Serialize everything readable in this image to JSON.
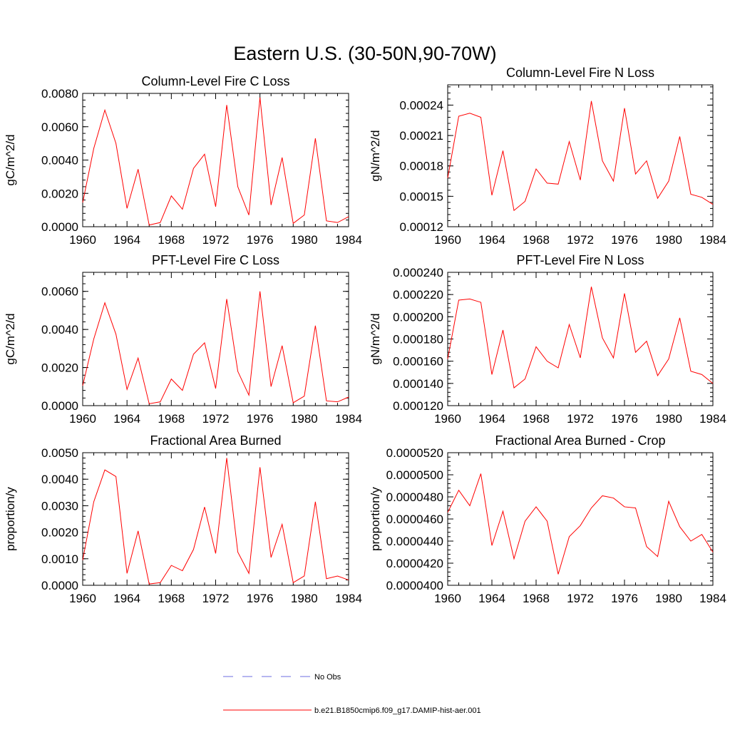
{
  "figure": {
    "title": "Eastern U.S. (30-50N,90-70W)"
  },
  "legend": {
    "entries": [
      {
        "label": "No Obs",
        "color": "#6d6de0",
        "style": "dashed"
      },
      {
        "label": "b.e21.B1850cmip6.f09_g17.DAMIP-hist-aer.001",
        "color": "#ff0000",
        "style": "solid"
      }
    ]
  },
  "chart_data": [
    {
      "type": "line",
      "title": "Column-Level Fire C Loss",
      "xlabel": "",
      "ylabel": "gC/m^2/d",
      "xlim": [
        1960,
        1984
      ],
      "ylim": [
        0,
        0.008
      ],
      "xticks": [
        1960,
        1964,
        1968,
        1972,
        1976,
        1980,
        1984
      ],
      "xtick_labels": [
        "1960",
        "1964",
        "1968",
        "1972",
        "1976",
        "1980",
        "1984"
      ],
      "yticks": [
        0,
        0.002,
        0.004,
        0.006,
        0.008
      ],
      "ytick_labels": [
        "0.0000",
        "0.0020",
        "0.0040",
        "0.0060",
        "0.0080"
      ],
      "x": [
        1960,
        1961,
        1962,
        1963,
        1964,
        1965,
        1966,
        1967,
        1968,
        1969,
        1970,
        1971,
        1972,
        1973,
        1974,
        1975,
        1976,
        1977,
        1978,
        1979,
        1980,
        1981,
        1982,
        1983,
        1984
      ],
      "series": [
        {
          "color": "#ff0000",
          "values": [
            0.00145,
            0.0047,
            0.007,
            0.005,
            0.0011,
            0.00345,
            0.0001,
            0.00025,
            0.00185,
            0.00105,
            0.0035,
            0.00435,
            0.0012,
            0.0073,
            0.0024,
            0.0007,
            0.00775,
            0.0013,
            0.00415,
            0.0002,
            0.0007,
            0.0053,
            0.00035,
            0.00025,
            0.0006
          ]
        }
      ]
    },
    {
      "type": "line",
      "title": "Column-Level Fire N Loss",
      "xlabel": "",
      "ylabel": "gN/m^2/d",
      "xlim": [
        1960,
        1984
      ],
      "ylim": [
        0.00012,
        0.00026
      ],
      "xticks": [
        1960,
        1964,
        1968,
        1972,
        1976,
        1980,
        1984
      ],
      "xtick_labels": [
        "1960",
        "1964",
        "1968",
        "1972",
        "1976",
        "1980",
        "1984"
      ],
      "yticks": [
        0.00012,
        0.00015,
        0.00018,
        0.00021,
        0.00024
      ],
      "ytick_labels": [
        "0.00012",
        "0.00015",
        "0.00018",
        "0.00021",
        "0.00024"
      ],
      "x": [
        1960,
        1961,
        1962,
        1963,
        1964,
        1965,
        1966,
        1967,
        1968,
        1969,
        1970,
        1971,
        1972,
        1973,
        1974,
        1975,
        1976,
        1977,
        1978,
        1979,
        1980,
        1981,
        1982,
        1983,
        1984
      ],
      "series": [
        {
          "color": "#ff0000",
          "values": [
            0.000168,
            0.000229,
            0.000232,
            0.000228,
            0.000151,
            0.000195,
            0.000136,
            0.000145,
            0.000177,
            0.000163,
            0.000162,
            0.000204,
            0.000166,
            0.000244,
            0.000185,
            0.000165,
            0.000237,
            0.000172,
            0.000185,
            0.000148,
            0.000165,
            0.000209,
            0.000152,
            0.000149,
            0.000142
          ]
        }
      ]
    },
    {
      "type": "line",
      "title": "PFT-Level Fire C Loss",
      "xlabel": "",
      "ylabel": "gC/m^2/d",
      "xlim": [
        1960,
        1984
      ],
      "ylim": [
        0,
        0.007
      ],
      "xticks": [
        1960,
        1964,
        1968,
        1972,
        1976,
        1980,
        1984
      ],
      "xtick_labels": [
        "1960",
        "1964",
        "1968",
        "1972",
        "1976",
        "1980",
        "1984"
      ],
      "yticks": [
        0,
        0.002,
        0.004,
        0.006
      ],
      "ytick_labels": [
        "0.0000",
        "0.0020",
        "0.0040",
        "0.0060"
      ],
      "x": [
        1960,
        1961,
        1962,
        1963,
        1964,
        1965,
        1966,
        1967,
        1968,
        1969,
        1970,
        1971,
        1972,
        1973,
        1974,
        1975,
        1976,
        1977,
        1978,
        1979,
        1980,
        1981,
        1982,
        1983,
        1984
      ],
      "series": [
        {
          "color": "#ff0000",
          "values": [
            0.00105,
            0.0035,
            0.0054,
            0.00375,
            0.00085,
            0.0025,
            0.0001,
            0.0002,
            0.0014,
            0.0008,
            0.0027,
            0.0033,
            0.0009,
            0.0056,
            0.0018,
            0.00055,
            0.006,
            0.001,
            0.00315,
            0.00015,
            0.0005,
            0.0042,
            0.00025,
            0.0002,
            0.00045
          ]
        }
      ]
    },
    {
      "type": "line",
      "title": "PFT-Level Fire N Loss",
      "xlabel": "",
      "ylabel": "gN/m^2/d",
      "xlim": [
        1960,
        1984
      ],
      "ylim": [
        0.00012,
        0.00024
      ],
      "xticks": [
        1960,
        1964,
        1968,
        1972,
        1976,
        1980,
        1984
      ],
      "xtick_labels": [
        "1960",
        "1964",
        "1968",
        "1972",
        "1976",
        "1980",
        "1984"
      ],
      "yticks": [
        0.00012,
        0.00014,
        0.00016,
        0.00018,
        0.0002,
        0.00022,
        0.00024
      ],
      "ytick_labels": [
        "0.000120",
        "0.000140",
        "0.000160",
        "0.000180",
        "0.000200",
        "0.000220",
        "0.000240"
      ],
      "x": [
        1960,
        1961,
        1962,
        1963,
        1964,
        1965,
        1966,
        1967,
        1968,
        1969,
        1970,
        1971,
        1972,
        1973,
        1974,
        1975,
        1976,
        1977,
        1978,
        1979,
        1980,
        1981,
        1982,
        1983,
        1984
      ],
      "series": [
        {
          "color": "#ff0000",
          "values": [
            0.000162,
            0.000215,
            0.000216,
            0.000213,
            0.000148,
            0.000188,
            0.000136,
            0.000144,
            0.000173,
            0.00016,
            0.000154,
            0.000193,
            0.000163,
            0.000227,
            0.000181,
            0.000163,
            0.000221,
            0.000168,
            0.000178,
            0.000147,
            0.000162,
            0.000199,
            0.000151,
            0.000148,
            0.00014
          ]
        }
      ]
    },
    {
      "type": "line",
      "title": "Fractional Area Burned",
      "xlabel": "",
      "ylabel": "proportion/y",
      "xlim": [
        1960,
        1984
      ],
      "ylim": [
        0,
        0.005
      ],
      "xticks": [
        1960,
        1964,
        1968,
        1972,
        1976,
        1980,
        1984
      ],
      "xtick_labels": [
        "1960",
        "1964",
        "1968",
        "1972",
        "1976",
        "1980",
        "1984"
      ],
      "yticks": [
        0,
        0.001,
        0.002,
        0.003,
        0.004,
        0.005
      ],
      "ytick_labels": [
        "0.0000",
        "0.0010",
        "0.0020",
        "0.0030",
        "0.0040",
        "0.0050"
      ],
      "x": [
        1960,
        1961,
        1962,
        1963,
        1964,
        1965,
        1966,
        1967,
        1968,
        1969,
        1970,
        1971,
        1972,
        1973,
        1974,
        1975,
        1976,
        1977,
        1978,
        1979,
        1980,
        1981,
        1982,
        1983,
        1984
      ],
      "series": [
        {
          "color": "#ff0000",
          "values": [
            0.00095,
            0.00315,
            0.00435,
            0.0041,
            0.00045,
            0.00205,
            5e-05,
            0.0001,
            0.00075,
            0.00055,
            0.00135,
            0.00295,
            0.0012,
            0.0048,
            0.00125,
            0.00045,
            0.00445,
            0.00105,
            0.0023,
            0.0001,
            0.00035,
            0.00315,
            0.00025,
            0.00035,
            0.0002
          ]
        }
      ]
    },
    {
      "type": "line",
      "title": "Fractional Area Burned - Crop",
      "xlabel": "",
      "ylabel": "proportion/y",
      "xlim": [
        1960,
        1984
      ],
      "ylim": [
        4e-05,
        5.2e-05
      ],
      "xticks": [
        1960,
        1964,
        1968,
        1972,
        1976,
        1980,
        1984
      ],
      "xtick_labels": [
        "1960",
        "1964",
        "1968",
        "1972",
        "1976",
        "1980",
        "1984"
      ],
      "yticks": [
        4e-05,
        4.2e-05,
        4.4e-05,
        4.6e-05,
        4.8e-05,
        5e-05,
        5.2e-05
      ],
      "ytick_labels": [
        "0.0000400",
        "0.0000420",
        "0.0000440",
        "0.0000460",
        "0.0000480",
        "0.0000500",
        "0.0000520"
      ],
      "x": [
        1960,
        1961,
        1962,
        1963,
        1964,
        1965,
        1966,
        1967,
        1968,
        1969,
        1970,
        1971,
        1972,
        1973,
        1974,
        1975,
        1976,
        1977,
        1978,
        1979,
        1980,
        1981,
        1982,
        1983,
        1984
      ],
      "series": [
        {
          "color": "#ff0000",
          "values": [
            4.66e-05,
            4.86e-05,
            4.72e-05,
            5.01e-05,
            4.36e-05,
            4.67e-05,
            4.24e-05,
            4.58e-05,
            4.71e-05,
            4.58e-05,
            4.1e-05,
            4.44e-05,
            4.54e-05,
            4.7e-05,
            4.81e-05,
            4.79e-05,
            4.71e-05,
            4.7e-05,
            4.35e-05,
            4.26e-05,
            4.76e-05,
            4.53e-05,
            4.4e-05,
            4.46e-05,
            4.3e-05
          ]
        }
      ]
    }
  ]
}
